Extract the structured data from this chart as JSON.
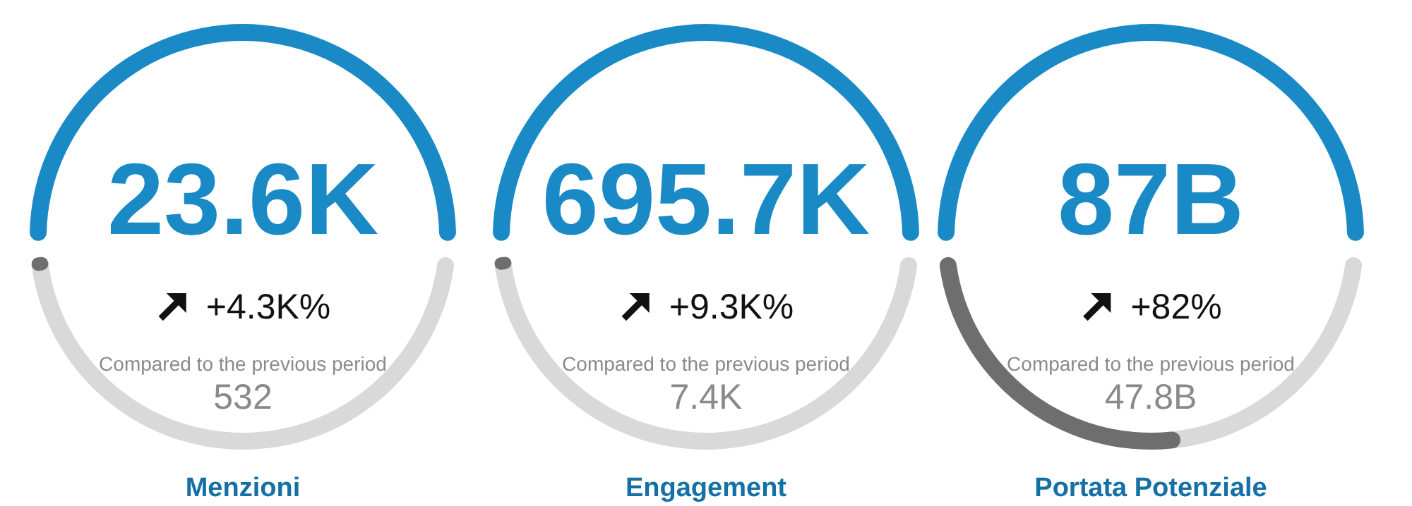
{
  "chart_data": [
    {
      "type": "other",
      "title": "Menzioni",
      "values": [
        23600,
        532
      ],
      "value_labels": [
        "23.6K",
        "532"
      ],
      "colors": [
        "#1a8ac6",
        "#6e6e6e"
      ],
      "annotations": [
        "+4.3K%",
        "Compared to the previous period"
      ]
    },
    {
      "type": "other",
      "title": "Engagement",
      "values": [
        695700,
        7400
      ],
      "value_labels": [
        "695.7K",
        "7.4K"
      ],
      "colors": [
        "#1a8ac6",
        "#6e6e6e"
      ],
      "annotations": [
        "+9.3K%",
        "Compared to the previous period"
      ]
    },
    {
      "type": "other",
      "title": "Portata Potenziale",
      "values": [
        87,
        47.8
      ],
      "value_labels": [
        "87B",
        "47.8B"
      ],
      "colors": [
        "#1a8ac6",
        "#6e6e6e"
      ],
      "annotations": [
        "+82%",
        "Compared to the previous period"
      ]
    }
  ]
}
